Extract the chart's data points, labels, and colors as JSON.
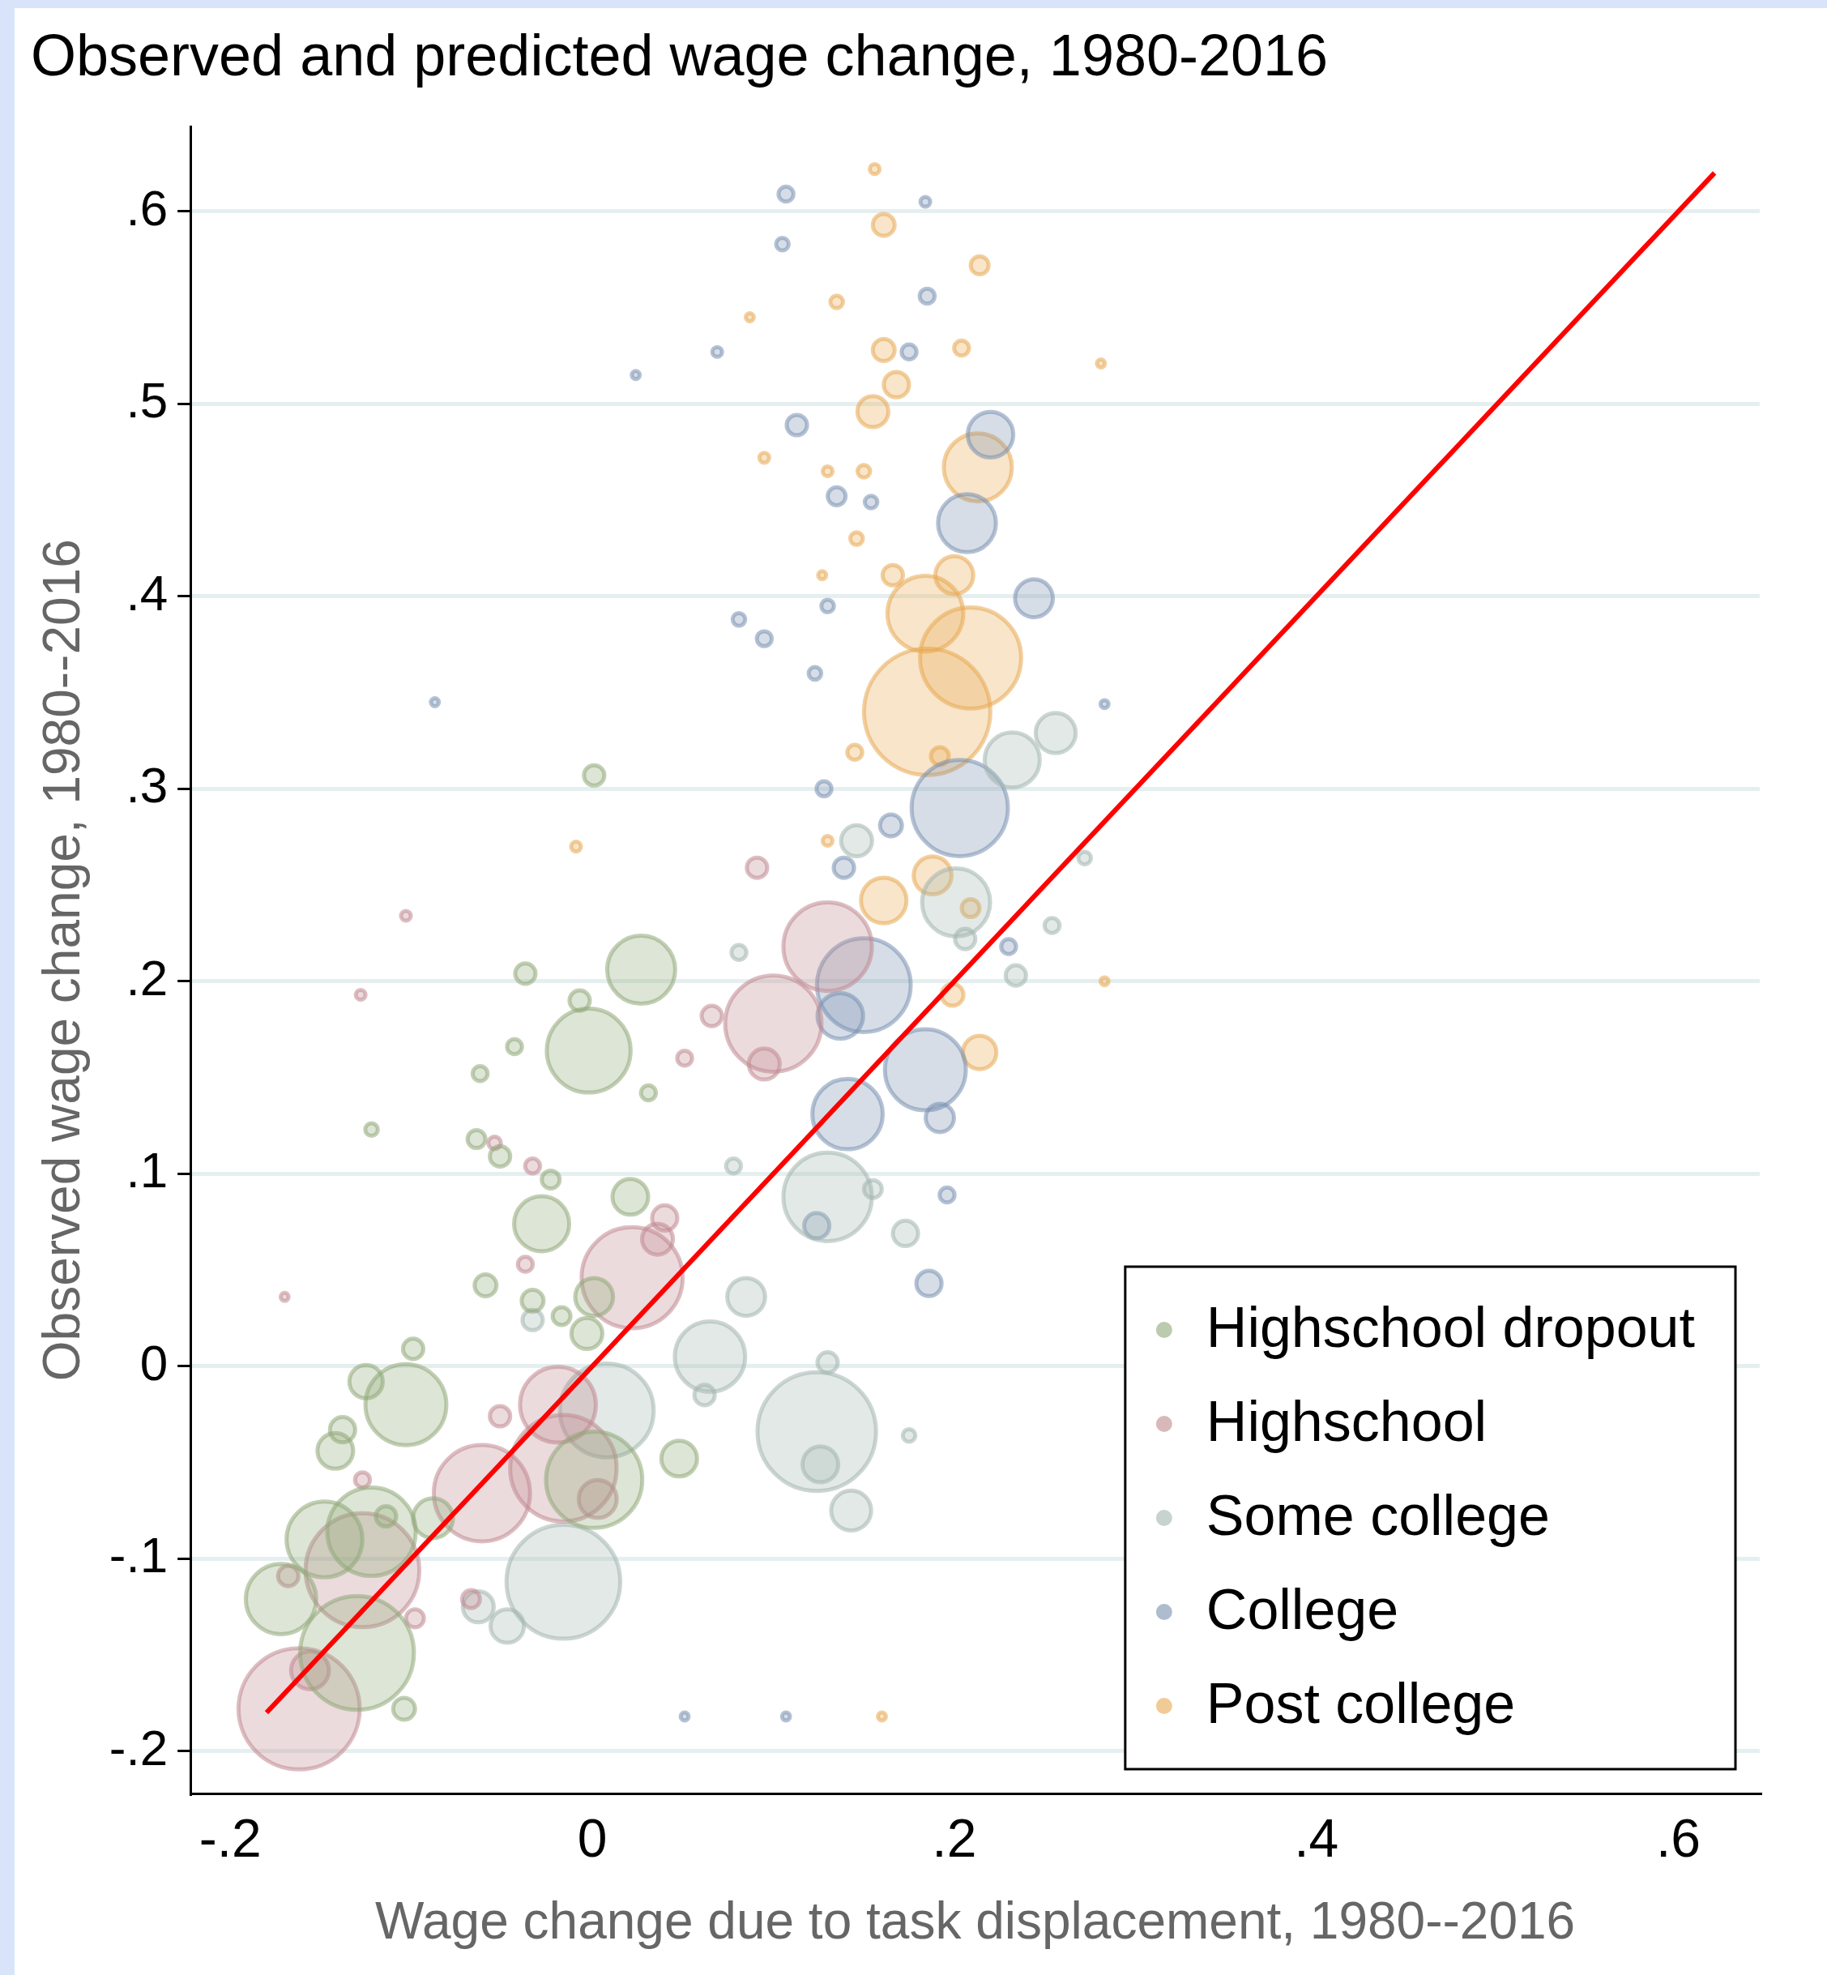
{
  "chart_data": {
    "type": "bubble",
    "title": "Observed and predicted wage change, 1980-2016",
    "xlabel": "Wage change due to task displacement, 1980--2016",
    "ylabel": "Observed wage change, 1980--2016",
    "xlim": [
      -0.222,
      0.645
    ],
    "ylim": [
      -0.222,
      0.644
    ],
    "xticks": [
      {
        "value": -0.2,
        "label": "-.2"
      },
      {
        "value": 0,
        "label": "0"
      },
      {
        "value": 0.2,
        "label": ".2"
      },
      {
        "value": 0.4,
        "label": ".4"
      },
      {
        "value": 0.6,
        "label": ".6"
      }
    ],
    "yticks": [
      {
        "value": -0.2,
        "label": "-.2"
      },
      {
        "value": -0.1,
        "label": "-.1"
      },
      {
        "value": 0,
        "label": "0"
      },
      {
        "value": 0.1,
        "label": ".1"
      },
      {
        "value": 0.2,
        "label": ".2"
      },
      {
        "value": 0.3,
        "label": ".3"
      },
      {
        "value": 0.4,
        "label": ".4"
      },
      {
        "value": 0.5,
        "label": ".5"
      },
      {
        "value": 0.6,
        "label": ".6"
      }
    ],
    "grid": "y",
    "legend": "bottom right",
    "marker": "circle",
    "series": [
      {
        "name": "Highschool dropout",
        "color": "#90a878",
        "x": [
          0.001,
          -0.037,
          0.027,
          -0.002,
          -0.007,
          -0.028,
          0.021,
          0.001,
          -0.103,
          -0.142,
          -0.125,
          -0.148,
          -0.13,
          -0.122,
          0.001,
          0.048,
          -0.104,
          -0.172,
          -0.088,
          -0.059,
          -0.064,
          -0.051,
          -0.043,
          -0.062,
          -0.122,
          -0.003,
          -0.033,
          -0.023,
          0.031,
          -0.099,
          -0.017,
          -0.138,
          -0.114
        ],
        "values": [
          0.307,
          0.204,
          0.206,
          0.164,
          0.19,
          0.074,
          0.088,
          0.036,
          -0.02,
          -0.044,
          -0.008,
          -0.09,
          -0.149,
          -0.086,
          -0.059,
          -0.048,
          -0.178,
          -0.121,
          -0.079,
          0.042,
          0.118,
          0.109,
          0.166,
          0.152,
          0.123,
          0.017,
          0.034,
          0.097,
          0.142,
          0.009,
          0.026,
          -0.033,
          -0.078
        ],
        "sizes": [
          0.026,
          0.026,
          0.29,
          0.44,
          0.026,
          0.19,
          0.08,
          0.09,
          0.41,
          0.08,
          0.07,
          0.36,
          0.81,
          0.49,
          0.58,
          0.08,
          0.03,
          0.31,
          0.1,
          0.03,
          0.02,
          0.026,
          0.014,
          0.014,
          0.01,
          0.06,
          0.03,
          0.02,
          0.014,
          0.026,
          0.02,
          0.04,
          0.026
        ]
      },
      {
        "name": "Highschool",
        "color": "#c08890",
        "x": [
          -0.162,
          -0.127,
          -0.156,
          -0.061,
          -0.019,
          -0.016,
          0.003,
          0.022,
          0.036,
          0.1,
          0.13,
          0.095,
          0.066,
          0.091,
          0.051,
          -0.033,
          -0.054,
          -0.067,
          -0.127,
          -0.051,
          -0.168,
          -0.103,
          -0.128,
          -0.17,
          -0.037,
          0.04,
          -0.098
        ],
        "values": [
          -0.178,
          -0.106,
          -0.158,
          -0.066,
          -0.02,
          -0.053,
          -0.069,
          0.046,
          0.066,
          0.178,
          0.218,
          0.157,
          0.182,
          0.259,
          0.16,
          0.104,
          0.116,
          -0.121,
          -0.059,
          -0.026,
          -0.109,
          0.234,
          0.193,
          0.036,
          0.053,
          0.077,
          -0.131
        ],
        "sizes": [
          0.92,
          0.81,
          0.09,
          0.58,
          0.36,
          0.71,
          0.09,
          0.64,
          0.06,
          0.58,
          0.49,
          0.06,
          0.026,
          0.026,
          0.014,
          0.014,
          0.01,
          0.02,
          0.014,
          0.026,
          0.026,
          0.006,
          0.006,
          0.004,
          0.014,
          0.04,
          0.02
        ]
      },
      {
        "name": "Some college",
        "color": "#a3b5ae",
        "x": [
          0.124,
          -0.016,
          0.008,
          0.065,
          0.13,
          0.201,
          0.232,
          0.256,
          0.143,
          0.126,
          0.085,
          -0.047,
          -0.063,
          0.062,
          0.173,
          0.234,
          0.254,
          0.206,
          0.081,
          0.078,
          0.175,
          0.146,
          0.272,
          0.13,
          0.155,
          -0.033
        ],
        "values": [
          -0.034,
          -0.112,
          -0.023,
          0.005,
          0.088,
          0.241,
          0.315,
          0.329,
          -0.075,
          -0.051,
          0.036,
          -0.135,
          -0.125,
          -0.015,
          0.069,
          0.203,
          0.229,
          0.222,
          0.215,
          0.104,
          -0.036,
          0.273,
          0.264,
          0.002,
          0.092,
          0.024
        ],
        "sizes": [
          0.88,
          0.81,
          0.55,
          0.31,
          0.49,
          0.29,
          0.19,
          0.1,
          0.1,
          0.08,
          0.09,
          0.07,
          0.06,
          0.026,
          0.04,
          0.026,
          0.014,
          0.026,
          0.014,
          0.014,
          0.01,
          0.06,
          0.01,
          0.026,
          0.02,
          0.026
        ]
      },
      {
        "name": "College",
        "color": "#7890b0",
        "x": [
          0.203,
          0.15,
          0.141,
          0.184,
          0.137,
          0.22,
          0.207,
          0.244,
          0.192,
          0.165,
          0.139,
          0.128,
          0.095,
          0.081,
          0.113,
          0.135,
          0.107,
          0.105,
          0.184,
          0.185,
          0.175,
          0.154,
          0.024,
          0.069,
          0.123,
          0.186,
          0.196,
          0.23,
          0.124,
          0.051,
          0.107,
          -0.087,
          0.13,
          0.283
        ],
        "values": [
          0.29,
          0.198,
          0.131,
          0.154,
          0.182,
          0.484,
          0.438,
          0.399,
          0.129,
          0.281,
          0.259,
          0.3,
          0.378,
          0.388,
          0.489,
          0.452,
          0.609,
          0.583,
          0.605,
          0.556,
          0.527,
          0.449,
          0.515,
          0.527,
          0.36,
          0.043,
          0.089,
          0.218,
          0.073,
          -0.182,
          -0.182,
          0.345,
          0.395,
          0.344
        ],
        "sizes": [
          0.58,
          0.55,
          0.31,
          0.41,
          0.13,
          0.13,
          0.21,
          0.09,
          0.05,
          0.03,
          0.026,
          0.014,
          0.014,
          0.01,
          0.026,
          0.02,
          0.014,
          0.01,
          0.006,
          0.014,
          0.014,
          0.01,
          0.004,
          0.006,
          0.01,
          0.04,
          0.014,
          0.014,
          0.04,
          0.004,
          0.004,
          0.004,
          0.01,
          0.004
        ]
      },
      {
        "name": "Post college",
        "color": "#e8a850",
        "x": [
          0.185,
          0.209,
          0.184,
          0.213,
          0.2,
          0.166,
          0.161,
          0.188,
          0.214,
          0.199,
          0.209,
          0.161,
          0.168,
          0.155,
          0.161,
          0.214,
          0.204,
          0.156,
          0.135,
          0.15,
          0.13,
          0.146,
          0.145,
          0.192,
          0.127,
          0.13,
          0.281,
          0.283,
          0.095,
          -0.009,
          0.16,
          0.087
        ],
        "values": [
          0.34,
          0.368,
          0.391,
          0.467,
          0.411,
          0.411,
          0.242,
          0.255,
          0.163,
          0.193,
          0.238,
          0.528,
          0.51,
          0.496,
          0.593,
          0.572,
          0.529,
          0.622,
          0.553,
          0.465,
          0.465,
          0.43,
          0.319,
          0.317,
          0.411,
          0.273,
          0.521,
          0.2,
          0.472,
          0.27,
          -0.182,
          0.545
        ],
        "sizes": [
          1,
          0.64,
          0.36,
          0.29,
          0.09,
          0.026,
          0.13,
          0.09,
          0.07,
          0.03,
          0.02,
          0.03,
          0.04,
          0.06,
          0.03,
          0.02,
          0.014,
          0.006,
          0.01,
          0.01,
          0.006,
          0.01,
          0.014,
          0.02,
          0.004,
          0.006,
          0.004,
          0.004,
          0.006,
          0.006,
          0.004,
          0.004
        ]
      },
      {
        "type": "line",
        "marker": "none",
        "color": "#ff0000",
        "x": [
          -0.18,
          0.62
        ],
        "values": [
          -0.18,
          0.62
        ]
      }
    ]
  }
}
